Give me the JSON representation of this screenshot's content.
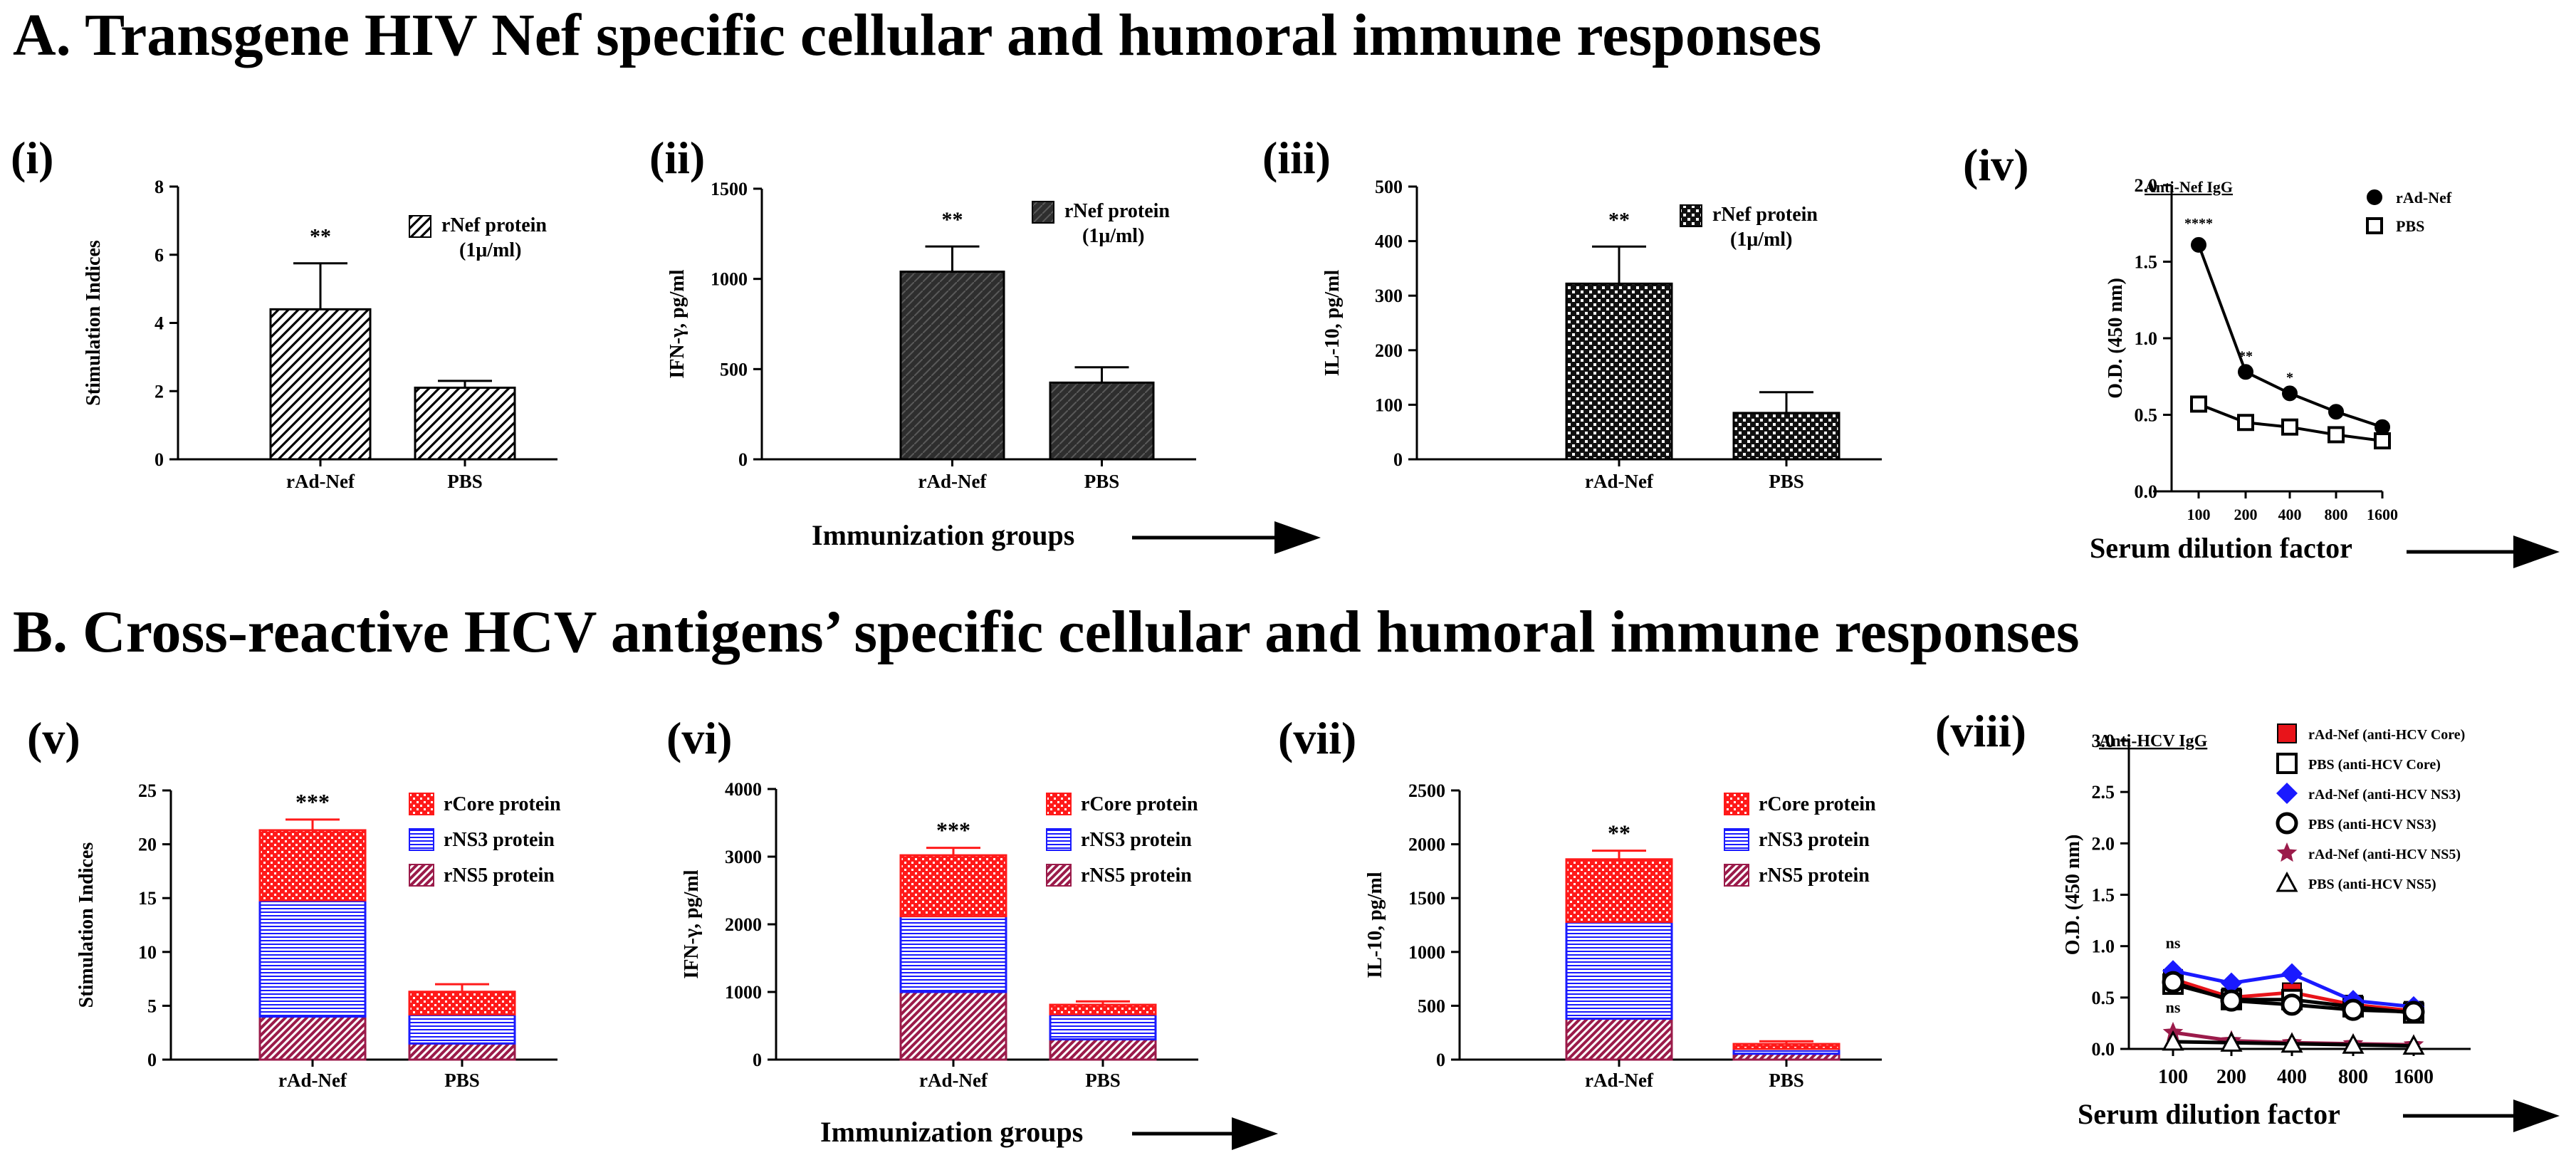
{
  "sections": {
    "a_title": "A.  Transgene HIV Nef specific cellular and humoral immune responses",
    "b_title": "B.  Cross-reactive HCV antigens’ specific cellular and humoral immune responses"
  },
  "x_groups": {
    "immunization": "Immunization groups",
    "serum": "Serum dilution factor"
  },
  "colors": {
    "core": "#ff1a1a",
    "ns3": "#1a1aff",
    "ns5": "#9b1b4a",
    "black": "#000000",
    "series_ns3_blue": "#1a1aff",
    "series_ns5_maroon": "#9b1b4a",
    "series_core_red": "#e8141a"
  },
  "chart_data": [
    {
      "id": "i",
      "label": "(i)",
      "type": "bar",
      "categories": [
        "rAd-Nef",
        "PBS"
      ],
      "values": [
        4.4,
        2.1
      ],
      "errors": [
        1.35,
        0.2
      ],
      "ylabel": "Stimulation Indices",
      "ylim": [
        0,
        8
      ],
      "yticks": [
        0,
        2,
        4,
        6,
        8
      ],
      "legend": [
        "rNef protein",
        "(1μ/ml)"
      ],
      "annotations": [
        "**",
        ""
      ],
      "fill": "hatch"
    },
    {
      "id": "ii",
      "label": "(ii)",
      "type": "bar",
      "categories": [
        "rAd-Nef",
        "PBS"
      ],
      "values": [
        1040,
        425
      ],
      "errors": [
        140,
        85
      ],
      "ylabel": "IFN-γ, pg/ml",
      "ylim": [
        0,
        1500
      ],
      "yticks": [
        0,
        500,
        1000,
        1500
      ],
      "legend": [
        "rNef protein",
        "(1μ/ml)"
      ],
      "annotations": [
        "**",
        ""
      ],
      "fill": "dark"
    },
    {
      "id": "iii",
      "label": "(iii)",
      "type": "bar",
      "categories": [
        "rAd-Nef",
        "PBS"
      ],
      "values": [
        322,
        85
      ],
      "errors": [
        68,
        38
      ],
      "ylabel": "IL-10, pg/ml",
      "ylim": [
        0,
        500
      ],
      "yticks": [
        0,
        100,
        200,
        300,
        400,
        500
      ],
      "legend": [
        "rNef protein",
        "(1μ/ml)"
      ],
      "annotations": [
        "**",
        ""
      ],
      "fill": "check"
    },
    {
      "id": "iv",
      "label": "(iv)",
      "type": "line",
      "title": "Anti-Nef IgG",
      "x": [
        "100",
        "200",
        "400",
        "800",
        "1600"
      ],
      "ylabel": "O.D. (450 nm)",
      "ylim": [
        0,
        2.0
      ],
      "yticks": [
        "0.0",
        "0.5",
        "1.0",
        "1.5",
        "2.0"
      ],
      "series": [
        {
          "name": "rAd-Nef",
          "values": [
            1.61,
            0.78,
            0.64,
            0.52,
            0.42
          ],
          "marker": "filled-circle",
          "color": "#000000"
        },
        {
          "name": "PBS",
          "values": [
            0.57,
            0.45,
            0.42,
            0.37,
            0.33
          ],
          "marker": "open-square",
          "color": "#000000"
        }
      ],
      "annotations": [
        "****",
        "**",
        "*",
        "",
        ""
      ]
    },
    {
      "id": "v",
      "label": "(v)",
      "type": "stacked-bar",
      "categories": [
        "rAd-Nef",
        "PBS"
      ],
      "ylabel": "Stimulation Indices",
      "ylim": [
        0,
        25
      ],
      "yticks": [
        0,
        5,
        10,
        15,
        20,
        25
      ],
      "series": [
        {
          "name": "rNS5 protein",
          "values": [
            4.0,
            1.5
          ],
          "errors": [
            1.0,
            0.3
          ]
        },
        {
          "name": "rNS3 protein",
          "values": [
            10.8,
            2.7
          ],
          "errors": [
            2.3,
            1.0
          ]
        },
        {
          "name": "rCore protein",
          "values": [
            6.5,
            2.1
          ],
          "errors": [
            1.0,
            0.7
          ]
        }
      ],
      "annotations": [
        "***",
        ""
      ]
    },
    {
      "id": "vi",
      "label": "(vi)",
      "type": "stacked-bar",
      "categories": [
        "rAd-Nef",
        "PBS"
      ],
      "ylabel": "IFN-γ, pg/ml",
      "ylim": [
        0,
        4000
      ],
      "yticks": [
        0,
        1000,
        2000,
        3000,
        4000
      ],
      "series": [
        {
          "name": "rNS5 protein",
          "values": [
            1000,
            300
          ],
          "errors": [
            200,
            60
          ]
        },
        {
          "name": "rNS3 protein",
          "values": [
            1120,
            370
          ],
          "errors": [
            130,
            70
          ]
        },
        {
          "name": "rCore protein",
          "values": [
            900,
            140
          ],
          "errors": [
            110,
            50
          ]
        }
      ],
      "annotations": [
        "***",
        ""
      ]
    },
    {
      "id": "vii",
      "label": "(vii)",
      "type": "stacked-bar",
      "categories": [
        "rAd-Nef",
        "PBS"
      ],
      "ylabel": "IL-10, pg/ml",
      "ylim": [
        0,
        2500
      ],
      "yticks": [
        0,
        500,
        1000,
        1500,
        2000,
        2500
      ],
      "series": [
        {
          "name": "rNS5 protein",
          "values": [
            380,
            55
          ],
          "errors": [
            120,
            20
          ]
        },
        {
          "name": "rNS3 protein",
          "values": [
            900,
            45
          ],
          "errors": [
            140,
            15
          ]
        },
        {
          "name": "rCore protein",
          "values": [
            580,
            45
          ],
          "errors": [
            80,
            25
          ]
        }
      ],
      "annotations": [
        "**",
        ""
      ]
    },
    {
      "id": "viii",
      "label": "(viii)",
      "type": "line",
      "title": "Anti-HCV IgG",
      "x": [
        "100",
        "200",
        "400",
        "800",
        "1600"
      ],
      "ylabel": "O.D. (450 nm)",
      "ylim": [
        0,
        3.0
      ],
      "yticks": [
        "0.0",
        "0.5",
        "1.0",
        "1.5",
        "2.0",
        "2.5",
        "3.0"
      ],
      "series": [
        {
          "name": "rAd-Nef (anti-HCV Core)",
          "values": [
            0.68,
            0.5,
            0.55,
            0.43,
            0.37
          ],
          "marker": "filled-square",
          "color": "#e8141a"
        },
        {
          "name": "PBS  (anti-HCV Core)",
          "values": [
            0.63,
            0.48,
            0.48,
            0.41,
            0.35
          ],
          "marker": "open-square",
          "color": "#000000"
        },
        {
          "name": "rAd-Nef (anti-HCV NS3)",
          "values": [
            0.76,
            0.64,
            0.73,
            0.47,
            0.41
          ],
          "marker": "filled-diamond",
          "color": "#1a1aff"
        },
        {
          "name": "PBS  (anti-HCV NS3)",
          "values": [
            0.65,
            0.47,
            0.43,
            0.38,
            0.36
          ],
          "marker": "open-circle",
          "color": "#000000"
        },
        {
          "name": "rAd-Nef (anti-HCV NS5)",
          "values": [
            0.16,
            0.08,
            0.06,
            0.05,
            0.04
          ],
          "marker": "filled-star",
          "color": "#9b1b4a"
        },
        {
          "name": "PBS  (anti-HCV NS5)",
          "values": [
            0.07,
            0.06,
            0.05,
            0.04,
            0.03
          ],
          "marker": "open-triangle",
          "color": "#000000"
        }
      ],
      "annotations": [
        "ns",
        "ns"
      ]
    }
  ]
}
